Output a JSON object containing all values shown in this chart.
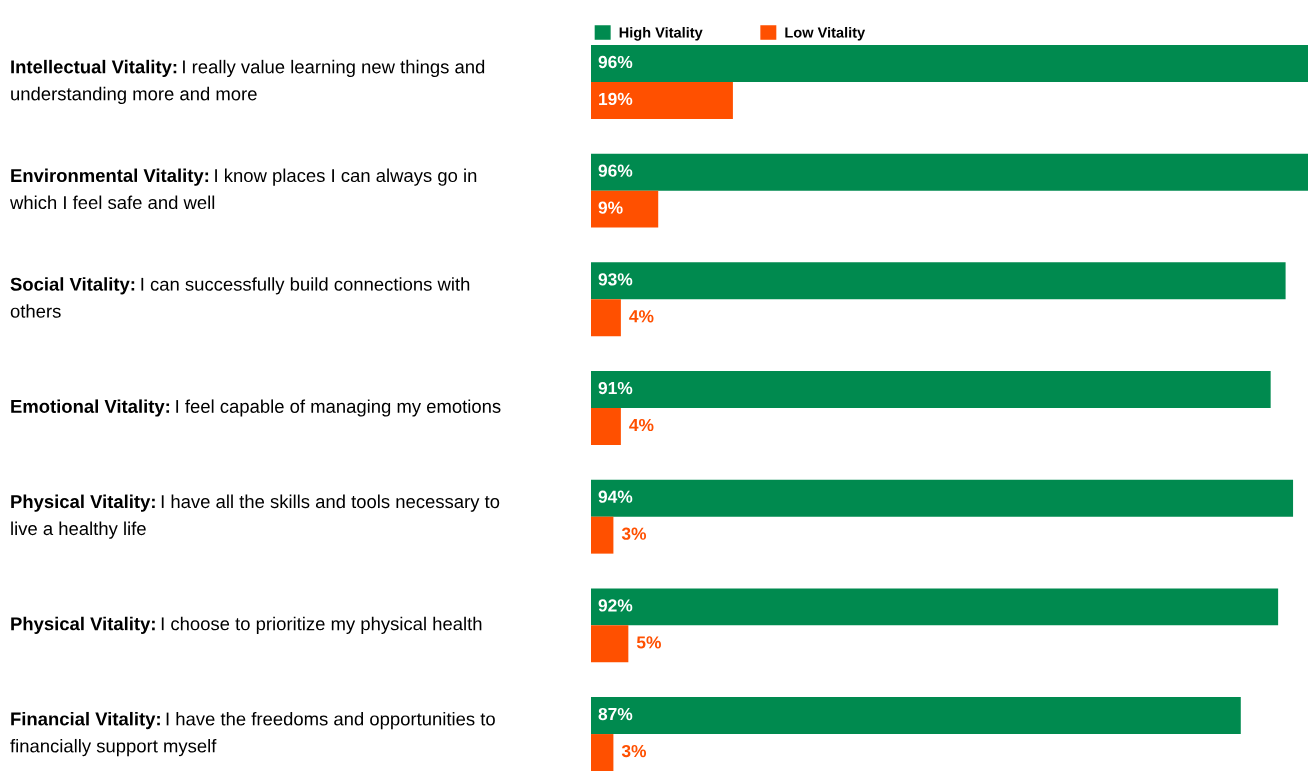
{
  "chart_data": {
    "type": "bar",
    "orientation": "horizontal",
    "legend": "top left",
    "categories": [
      "Intellectual Vitality: I really value learning new things and understanding more and more",
      "Environmental Vitality: I know places I can always go in which I feel safe and well",
      "Social Vitality: I can successfully build connections with others",
      "Emotional Vitality: I feel capable of managing my emotions",
      "Physical Vitality: I have all the skills and tools necessary to live a healthy life",
      "Physical Vitality: I choose to prioritize my physical health",
      "Financial Vitality: I have the freedoms and opportunities to financially support myself"
    ],
    "series": [
      {
        "name": "High Vitality",
        "color": "#008a4f",
        "values": [
          96,
          96,
          93,
          91,
          94,
          92,
          87
        ],
        "value_labels": [
          "96%",
          "96%",
          "93%",
          "91%",
          "94%",
          "92%",
          "87%"
        ]
      },
      {
        "name": "Low Vitality",
        "color": "#ff5000",
        "values": [
          19,
          9,
          4,
          4,
          3,
          5,
          3
        ],
        "value_labels": [
          "19%",
          "9%",
          "4%",
          "4%",
          "3%",
          "5%",
          "3%"
        ]
      }
    ]
  }
}
